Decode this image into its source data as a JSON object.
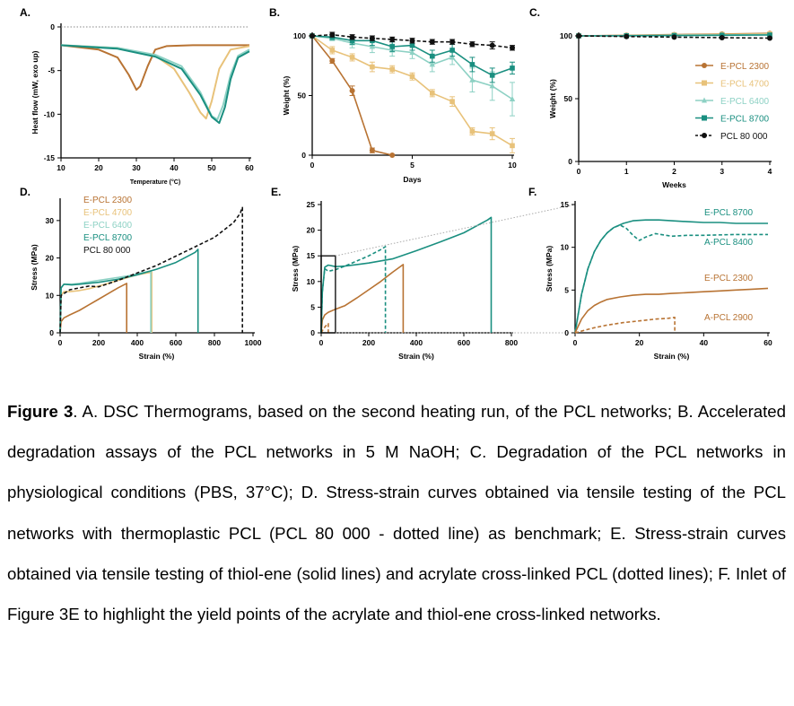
{
  "colors": {
    "e2300": "#b87333",
    "e4700": "#e8c27a",
    "e6400": "#8dd1c4",
    "e8700": "#1a8f80",
    "pcl80000": "#111111",
    "grid": "#999999"
  },
  "caption": {
    "label": "Figure 3",
    "text": ". A. DSC Thermograms, based on the second heating run, of the PCL networks; B. Accelerated degradation assays of the PCL networks in 5 M NaOH; C. Degradation of the PCL networks in physiological conditions (PBS, 37°C); D. Stress-strain curves obtained via tensile testing of the PCL networks with thermoplastic PCL (PCL 80 000 - dotted line) as benchmark; E. Stress-strain curves obtained via tensile testing of thiol-ene (solid lines) and acrylate cross-linked PCL (dotted lines); F. Inlet of Figure 3E to highlight the yield points of the acrylate and thiol-ene cross-linked networks."
  },
  "chart_data": [
    {
      "panel": "A.",
      "type": "line",
      "xlabel": "Temperature (°C)",
      "ylabel": "Heat flow (mW, exo up)",
      "xlim": [
        10,
        60
      ],
      "ylim": [
        -15,
        0
      ],
      "xticks": [
        10,
        20,
        30,
        40,
        50,
        60
      ],
      "yticks": [
        -15,
        -10,
        -5,
        0
      ],
      "series": [
        {
          "key": "e2300",
          "x": [
            10,
            20,
            25,
            28,
            30,
            31,
            33,
            35,
            38,
            45,
            60
          ],
          "y": [
            -2.1,
            -2.6,
            -3.5,
            -5.5,
            -7.2,
            -6.8,
            -4.5,
            -2.6,
            -2.2,
            -2.1,
            -2.1
          ]
        },
        {
          "key": "e4700",
          "x": [
            10,
            25,
            35,
            40,
            44,
            47,
            48.5,
            50,
            52,
            55,
            60
          ],
          "y": [
            -2.1,
            -2.4,
            -3.3,
            -4.8,
            -7.5,
            -9.8,
            -10.5,
            -8.5,
            -4.8,
            -2.6,
            -2.2
          ]
        },
        {
          "key": "e6400",
          "x": [
            10,
            25,
            35,
            42,
            47,
            50,
            51.5,
            53,
            55,
            57,
            60
          ],
          "y": [
            -2.1,
            -2.4,
            -3.2,
            -4.5,
            -7.5,
            -10.2,
            -10.6,
            -9,
            -5.5,
            -3.3,
            -2.6
          ]
        },
        {
          "key": "e8700",
          "x": [
            10,
            25,
            35,
            42,
            47,
            50,
            52,
            53.5,
            55,
            57,
            60
          ],
          "y": [
            -2.1,
            -2.5,
            -3.4,
            -4.8,
            -7.8,
            -10.3,
            -11,
            -9.2,
            -6,
            -3.5,
            -2.8
          ]
        }
      ]
    },
    {
      "panel": "B.",
      "type": "line",
      "xlabel": "Days",
      "ylabel": "Weight (%)",
      "xlim": [
        0,
        10
      ],
      "ylim": [
        0,
        100
      ],
      "xticks": [
        0,
        5,
        10
      ],
      "yticks": [
        0,
        50,
        100
      ],
      "series": [
        {
          "key": "e2300",
          "marker": "circle",
          "x": [
            0,
            1,
            2,
            3,
            4
          ],
          "y": [
            100,
            79,
            54,
            4,
            0
          ],
          "err": [
            0,
            2,
            4,
            2,
            0
          ]
        },
        {
          "key": "e4700",
          "marker": "square",
          "x": [
            0,
            1,
            2,
            3,
            4,
            5,
            6,
            7,
            8,
            9,
            10
          ],
          "y": [
            100,
            88,
            82,
            74,
            72,
            66,
            52,
            45,
            20,
            18,
            8
          ],
          "err": [
            0,
            3,
            3,
            4,
            3,
            3,
            3,
            4,
            3,
            5,
            6
          ]
        },
        {
          "key": "e6400",
          "marker": "triangle",
          "x": [
            0,
            1,
            2,
            3,
            4,
            5,
            6,
            7,
            8,
            9,
            10
          ],
          "y": [
            100,
            98,
            94,
            91,
            88,
            86,
            76,
            82,
            63,
            58,
            47
          ],
          "err": [
            0,
            2,
            4,
            5,
            5,
            5,
            6,
            6,
            10,
            12,
            14
          ]
        },
        {
          "key": "e8700",
          "marker": "square",
          "x": [
            0,
            1,
            2,
            3,
            4,
            5,
            6,
            7,
            8,
            9,
            10
          ],
          "y": [
            100,
            99,
            96,
            96,
            91,
            92,
            83,
            88,
            76,
            67,
            73
          ],
          "err": [
            0,
            2,
            3,
            4,
            4,
            4,
            5,
            5,
            6,
            6,
            5
          ]
        },
        {
          "key": "pcl80000",
          "marker": "circle",
          "dashed": true,
          "x": [
            0,
            1,
            2,
            3,
            4,
            5,
            6,
            7,
            8,
            9,
            10
          ],
          "y": [
            100,
            101,
            99,
            98,
            97,
            96,
            95,
            95,
            93,
            92,
            90
          ],
          "err": [
            0,
            2,
            2,
            2,
            2,
            2,
            2,
            2,
            2,
            3,
            2
          ]
        }
      ]
    },
    {
      "panel": "C.",
      "type": "line",
      "xlabel": "Weeks",
      "ylabel": "Weight (%)",
      "xlim": [
        0,
        4
      ],
      "ylim": [
        0,
        100
      ],
      "xticks": [
        0,
        1,
        2,
        3,
        4
      ],
      "yticks": [
        0,
        50,
        100
      ],
      "legend": [
        "E-PCL 2300",
        "E-PCL 4700",
        "E-PCL 6400",
        "E-PCL 8700",
        "PCL 80 000"
      ],
      "series": [
        {
          "key": "e2300",
          "marker": "circle",
          "x": [
            0,
            1,
            2,
            3,
            4
          ],
          "y": [
            100,
            100.5,
            101,
            101.5,
            102
          ]
        },
        {
          "key": "e4700",
          "marker": "square",
          "x": [
            0,
            1,
            2,
            3,
            4
          ],
          "y": [
            100,
            100.3,
            100.8,
            101.2,
            101.6
          ]
        },
        {
          "key": "e6400",
          "marker": "triangle",
          "x": [
            0,
            1,
            2,
            3,
            4
          ],
          "y": [
            100,
            100.2,
            100.5,
            100.8,
            101
          ]
        },
        {
          "key": "e8700",
          "marker": "square",
          "x": [
            0,
            1,
            2,
            3,
            4
          ],
          "y": [
            100,
            100.1,
            100.3,
            100.5,
            100.7
          ]
        },
        {
          "key": "pcl80000",
          "marker": "circle",
          "dashed": true,
          "x": [
            0,
            1,
            2,
            3,
            4
          ],
          "y": [
            100,
            99.5,
            99,
            98.6,
            98.2
          ]
        }
      ]
    },
    {
      "panel": "D.",
      "type": "line",
      "xlabel": "Strain (%)",
      "ylabel": "Stress (MPa)",
      "xlim": [
        0,
        1000
      ],
      "ylim": [
        0,
        35
      ],
      "xticks": [
        0,
        200,
        400,
        600,
        800,
        1000
      ],
      "yticks": [
        0,
        10,
        20,
        30
      ],
      "legend": [
        "E-PCL 2300",
        "E-PCL 4700",
        "E-PCL 6400",
        "E-PCL 8700",
        "PCL 80 000"
      ],
      "series": [
        {
          "key": "e2300",
          "x": [
            0,
            5,
            20,
            50,
            100,
            150,
            200,
            250,
            300,
            345,
            345
          ],
          "y": [
            0,
            3,
            4,
            4.8,
            6,
            7.5,
            9,
            10.5,
            12,
            13.2,
            0
          ]
        },
        {
          "key": "e4700",
          "x": [
            0,
            5,
            20,
            50,
            100,
            150,
            200,
            250,
            300,
            350,
            400,
            450,
            475,
            475
          ],
          "y": [
            0,
            10,
            11,
            11,
            11.3,
            11.8,
            12.5,
            13.2,
            14,
            14.8,
            15.5,
            16,
            16.2,
            0
          ]
        },
        {
          "key": "e6400",
          "x": [
            0,
            5,
            20,
            60,
            100,
            200,
            300,
            350,
            400,
            450,
            470,
            470
          ],
          "y": [
            0,
            12,
            13,
            13,
            13.2,
            14,
            14.8,
            15.2,
            15.8,
            16.3,
            16.5,
            0
          ]
        },
        {
          "key": "e8700",
          "x": [
            0,
            5,
            20,
            60,
            100,
            200,
            300,
            400,
            500,
            600,
            700,
            715,
            715
          ],
          "y": [
            0,
            12,
            13,
            12.8,
            13,
            13.5,
            14.3,
            15.5,
            17,
            18.8,
            21.5,
            22.3,
            0
          ]
        },
        {
          "key": "pcl80000",
          "dashed": true,
          "x": [
            0,
            5,
            20,
            50,
            100,
            150,
            200,
            300,
            400,
            500,
            600,
            700,
            800,
            850,
            900,
            935,
            940,
            945,
            945
          ],
          "y": [
            0,
            10,
            10.5,
            11.5,
            12,
            12.5,
            12.3,
            14,
            16,
            18,
            20.5,
            23,
            25.5,
            27.5,
            29.5,
            32,
            33,
            33.5,
            0
          ]
        }
      ]
    },
    {
      "panel": "E.",
      "type": "line",
      "xlabel": "Strain (%)",
      "ylabel": "Stress (MPa)",
      "xlim": [
        0,
        800
      ],
      "ylim": [
        0,
        25
      ],
      "xticks": [
        0,
        200,
        400,
        600,
        800
      ],
      "yticks": [
        0,
        5,
        10,
        15,
        20,
        25
      ],
      "series": [
        {
          "key": "e2300",
          "x": [
            0,
            5,
            15,
            30,
            60,
            100,
            150,
            200,
            250,
            300,
            345,
            345
          ],
          "y": [
            0,
            2.5,
            3.5,
            4,
            4.6,
            5.3,
            6.8,
            8.4,
            10,
            11.8,
            13.3,
            0
          ]
        },
        {
          "key": "e8700",
          "x": [
            0,
            5,
            15,
            30,
            60,
            100,
            150,
            200,
            300,
            400,
            500,
            600,
            700,
            715,
            715
          ],
          "y": [
            0,
            8,
            12.8,
            13.2,
            12.9,
            13,
            13.3,
            13.6,
            14.4,
            16,
            17.7,
            19.5,
            22,
            22.5,
            0
          ]
        },
        {
          "key": "e2300",
          "dashed": true,
          "x": [
            0,
            10,
            20,
            30,
            30
          ],
          "y": [
            0,
            0.8,
            1.4,
            1.8,
            0
          ]
        },
        {
          "key": "e8700",
          "dashed": true,
          "x": [
            0,
            5,
            15,
            30,
            60,
            100,
            150,
            200,
            250,
            270,
            270
          ],
          "y": [
            0,
            8,
            12.5,
            12,
            12.3,
            13,
            14,
            15,
            16.2,
            16.8,
            0
          ]
        }
      ]
    },
    {
      "panel": "F.",
      "type": "line",
      "xlabel": "Strain (%)",
      "ylabel": "Stress (MPa)",
      "xlim": [
        0,
        60
      ],
      "ylim": [
        0,
        15
      ],
      "xticks": [
        0,
        20,
        40,
        60
      ],
      "yticks": [
        0,
        5,
        10,
        15
      ],
      "labels": [
        "E-PCL 8700",
        "A-PCL 8400",
        "E-PCL 2300",
        "A-PCL 2900"
      ],
      "series": [
        {
          "key": "e8700",
          "name": "E-PCL 8700",
          "x": [
            0,
            2,
            4,
            6,
            8,
            10,
            12,
            15,
            18,
            22,
            26,
            30,
            35,
            40,
            45,
            50,
            55,
            60
          ],
          "y": [
            0,
            4.5,
            7.5,
            9.5,
            10.8,
            11.7,
            12.3,
            12.8,
            13.1,
            13.2,
            13.2,
            13.1,
            13,
            12.9,
            12.9,
            12.8,
            12.8,
            12.8
          ]
        },
        {
          "key": "e8700",
          "name": "A-PCL 8400",
          "dashed": true,
          "x": [
            0,
            2,
            4,
            6,
            8,
            10,
            12,
            14,
            16,
            18,
            20,
            22,
            25,
            30,
            35,
            40,
            50,
            60
          ],
          "y": [
            0,
            4.5,
            7.5,
            9.5,
            10.8,
            11.7,
            12.3,
            12.6,
            12.2,
            11.4,
            10.8,
            11.2,
            11.6,
            11.3,
            11.4,
            11.4,
            11.5,
            11.5
          ]
        },
        {
          "key": "e2300",
          "name": "E-PCL 2300",
          "x": [
            0,
            2,
            4,
            6,
            8,
            10,
            14,
            18,
            22,
            26,
            30,
            35,
            40,
            45,
            50,
            55,
            60
          ],
          "y": [
            0,
            1.6,
            2.6,
            3.2,
            3.6,
            3.9,
            4.2,
            4.4,
            4.5,
            4.5,
            4.6,
            4.7,
            4.8,
            4.9,
            5,
            5.1,
            5.2
          ]
        },
        {
          "key": "e2300",
          "name": "A-PCL 2900",
          "dashed": true,
          "x": [
            0,
            3,
            6,
            10,
            15,
            20,
            25,
            29,
            31,
            31
          ],
          "y": [
            0,
            0.3,
            0.6,
            0.9,
            1.2,
            1.4,
            1.6,
            1.7,
            1.8,
            0
          ]
        }
      ]
    }
  ]
}
